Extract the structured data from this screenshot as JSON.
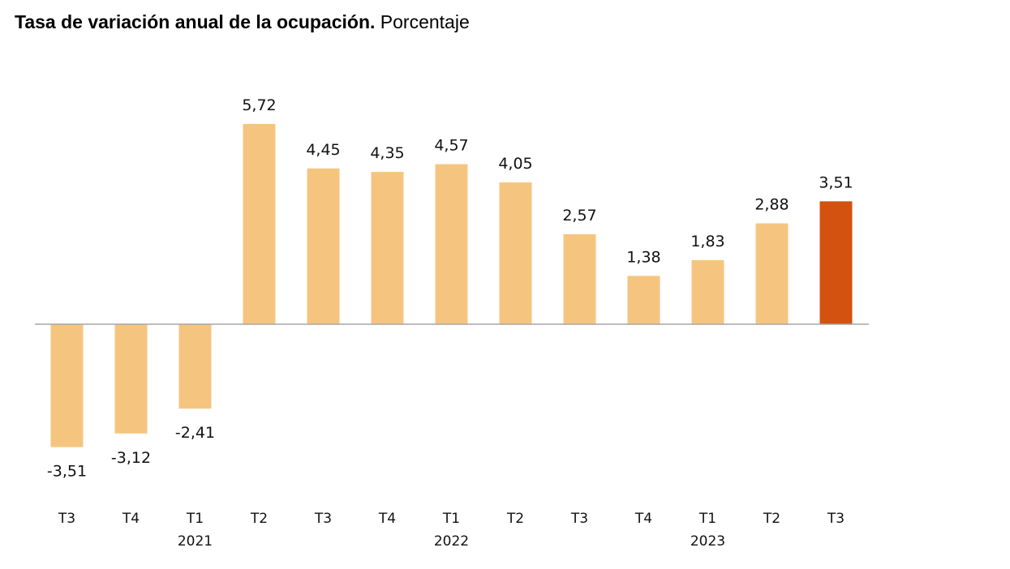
{
  "title": {
    "bold": "Tasa de variación anual de la ocupación.",
    "normal": "Porcentaje"
  },
  "chart_data": {
    "type": "bar",
    "categories": [
      "T3",
      "T4",
      "T1",
      "T2",
      "T3",
      "T4",
      "T1",
      "T2",
      "T3",
      "T4",
      "T1",
      "T2",
      "T3"
    ],
    "year_labels": [
      "",
      "",
      "2021",
      "",
      "",
      "",
      "2022",
      "",
      "",
      "",
      "2023",
      "",
      ""
    ],
    "values": [
      -3.51,
      -3.12,
      -2.41,
      5.72,
      4.45,
      4.35,
      4.57,
      4.05,
      2.57,
      1.38,
      1.83,
      2.88,
      3.51
    ],
    "value_labels": [
      "-3,51",
      "-3,12",
      "-2,41",
      "5,72",
      "4,45",
      "4,35",
      "4,57",
      "4,05",
      "2,57",
      "1,38",
      "1,83",
      "2,88",
      "3,51"
    ],
    "highlight_index": 12,
    "colors": {
      "bar": "#F5C580",
      "highlight": "#D4520F",
      "axis": "#A6A6A6"
    },
    "grid": false,
    "legend": "none"
  }
}
